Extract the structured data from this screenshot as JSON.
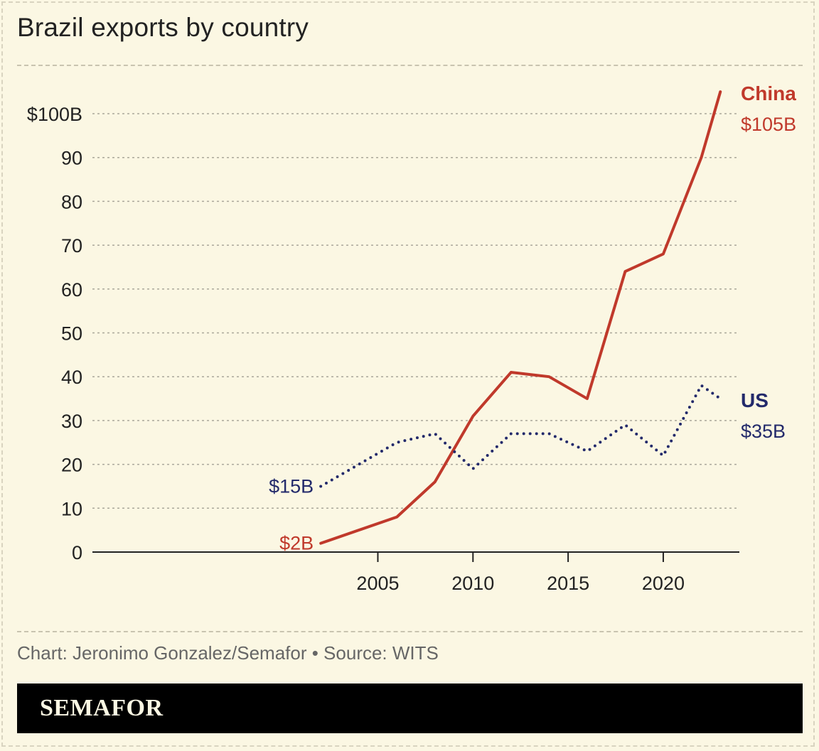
{
  "title": "Brazil exports by country",
  "credit": "Chart: Jeronimo Gonzalez/Semafor • Source: WITS",
  "brand": "SEMAFOR",
  "colors": {
    "background": "#fbf7e3",
    "china": "#c0392b",
    "us": "#232a6b",
    "grid": "#aaa79a",
    "brandbar": "#000000"
  },
  "chart_data": {
    "type": "line",
    "ylim": [
      0,
      100
    ],
    "xlim": [
      2000,
      2024
    ],
    "y_ticks": [
      0,
      10,
      20,
      30,
      40,
      50,
      60,
      70,
      80,
      90,
      100
    ],
    "y_tick_labels": [
      "0",
      "10",
      "20",
      "30",
      "40",
      "50",
      "60",
      "70",
      "80",
      "90",
      "$100B"
    ],
    "x_ticks": [
      2005,
      2010,
      2015,
      2020
    ],
    "x_tick_labels": [
      "2005",
      "2010",
      "2015",
      "2020"
    ],
    "grid": true,
    "series": [
      {
        "name": "China",
        "style": "solid",
        "color": "#c0392b",
        "x": [
          2002,
          2006,
          2008,
          2010,
          2012,
          2014,
          2016,
          2018,
          2020,
          2022,
          2023
        ],
        "values": [
          2,
          8,
          16,
          31,
          41,
          40,
          35,
          64,
          68,
          90,
          105
        ],
        "start_label": "$2B",
        "end_label": "$105B"
      },
      {
        "name": "US",
        "style": "dotted",
        "color": "#232a6b",
        "x": [
          2002,
          2006,
          2008,
          2010,
          2012,
          2014,
          2016,
          2018,
          2020,
          2022,
          2023
        ],
        "values": [
          15,
          25,
          27,
          19,
          27,
          27,
          23,
          29,
          22,
          38,
          35
        ],
        "start_label": "$15B",
        "end_label": "$35B"
      }
    ]
  }
}
